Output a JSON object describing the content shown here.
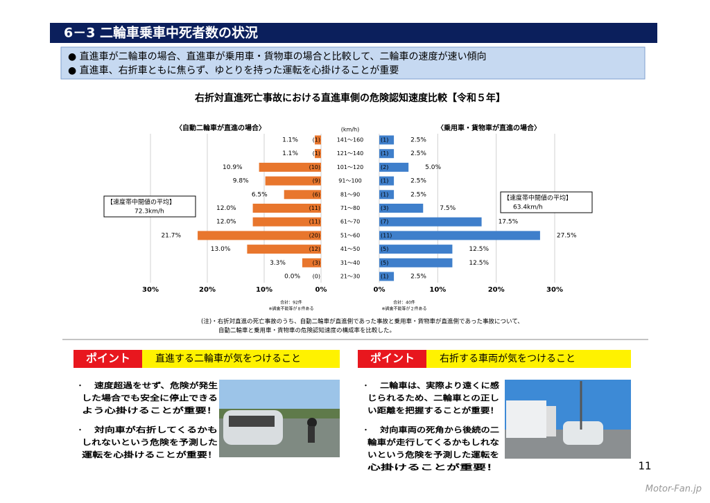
{
  "header": {
    "title": "6－3 二輪車乗車中死者数の状況"
  },
  "bullets": [
    "● 直進車が二輪車の場合、直進車が乗用車・貨物車の場合と比較して、二輪車の速度が速い傾向",
    "● 直進車、右折車ともに焦らず、ゆとりを持った運転を心掛けることが重要"
  ],
  "chart_data": {
    "type": "butterfly",
    "title": "右折対直進死亡事故における直進車側の危険認知速度比較【令和５年】",
    "unit": "(km/h)",
    "categories": [
      "141～160",
      "121～140",
      "101～120",
      "91～100",
      "81～90",
      "71～80",
      "61～70",
      "51～60",
      "41～50",
      "31～40",
      "21～30"
    ],
    "series": [
      {
        "name": "〈自動二輪車が直進の場合〉",
        "color": "#e8762d",
        "values": [
          1.1,
          1.1,
          10.9,
          9.8,
          6.5,
          12.0,
          12.0,
          21.7,
          13.0,
          3.3,
          0.0
        ],
        "value_labels": [
          "1.1%",
          "1.1%",
          "10.9%",
          "9.8%",
          "6.5%",
          "12.0%",
          "12.0%",
          "21.7%",
          "13.0%",
          "3.3%",
          "0.0%"
        ],
        "counts": [
          1,
          1,
          10,
          9,
          6,
          11,
          11,
          20,
          12,
          3,
          0
        ],
        "count_labels": [
          "(1)",
          "(1)",
          "(10)",
          "(9)",
          "(6)",
          "(11)",
          "(11)",
          "(20)",
          "(12)",
          "(3)",
          "(0)"
        ],
        "xlim": [
          30,
          0
        ],
        "xticks": [
          {
            "value": 30,
            "label": "30%"
          },
          {
            "value": 20,
            "label": "20%"
          },
          {
            "value": 10,
            "label": "10%"
          },
          {
            "value": 0,
            "label": "0%"
          }
        ],
        "average_title": "【速度帯中間値の平均】",
        "average": "72.3km/h",
        "total": "合計：92件",
        "total_note": "※調査不能等が８件ある"
      },
      {
        "name": "〈乗用車・貨物車が直進の場合〉",
        "color": "#3f7fcb",
        "values": [
          2.5,
          2.5,
          5.0,
          2.5,
          2.5,
          7.5,
          17.5,
          27.5,
          12.5,
          12.5,
          2.5
        ],
        "value_labels": [
          "2.5%",
          "2.5%",
          "5.0%",
          "2.5%",
          "2.5%",
          "7.5%",
          "17.5%",
          "27.5%",
          "12.5%",
          "12.5%",
          "2.5%"
        ],
        "counts": [
          1,
          1,
          2,
          1,
          1,
          3,
          7,
          11,
          5,
          5,
          1
        ],
        "count_labels": [
          "(1)",
          "(1)",
          "(2)",
          "(1)",
          "(1)",
          "(3)",
          "(7)",
          "(11)",
          "(5)",
          "(5)",
          "(1)"
        ],
        "xlim": [
          0,
          30
        ],
        "xticks": [
          {
            "value": 0,
            "label": "0%"
          },
          {
            "value": 10,
            "label": "10%"
          },
          {
            "value": 20,
            "label": "20%"
          },
          {
            "value": 30,
            "label": "30%"
          }
        ],
        "average_title": "【速度帯中間値の平均】",
        "average": "63.4km/h",
        "total": "合計：40件",
        "total_note": "※調査不能等が２件ある"
      }
    ],
    "note": [
      "(注)・右折対直進の死亡事故のうち、自動二輪車が直進側であった事故と乗用車・貨物車が直進側であった事故について、",
      "自動二輪車と乗用車・貨物車の危険認知速度の構成率を比較した。"
    ]
  },
  "points": [
    {
      "label": "ポイント",
      "heading": "直進する二輪車が気をつけること",
      "items": [
        [
          "速度超過をせず、危険が発生",
          "した場合でも安全に停止できる",
          "よう心掛けることが重要！"
        ],
        [
          "対向車が右折してくるかも",
          "しれないという危険を予測した",
          "運転を心掛けることが重要！"
        ]
      ]
    },
    {
      "label": "ポイント",
      "heading": "右折する車両が気をつけること",
      "items": [
        [
          "二輪車は、実際より遠くに感",
          "じられるため、二輪車との正し",
          "い距離を把握することが重要！"
        ],
        [
          "対向車両の死角から後続の二",
          "輪車が走行してくるかもしれな",
          "いという危険を予測した運転を",
          "心掛けることが重要！"
        ]
      ]
    }
  ],
  "page_number": "11",
  "watermark": "Motor-Fan.jp"
}
